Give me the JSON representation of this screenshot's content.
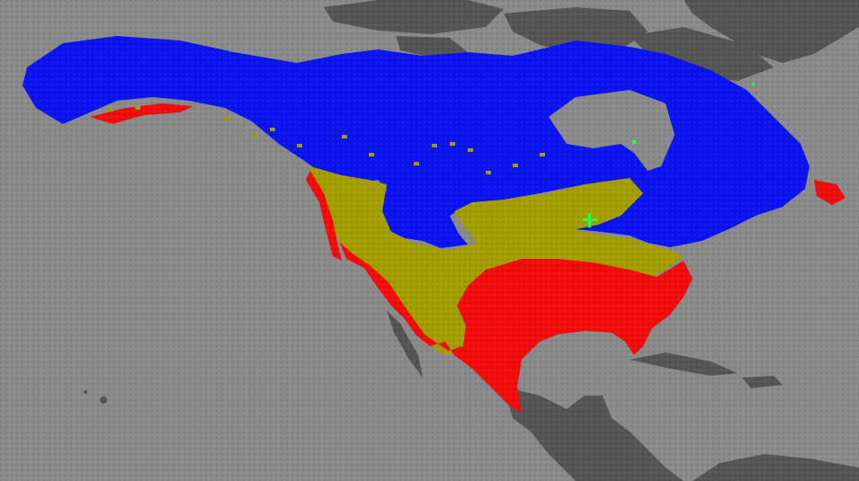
{
  "map": {
    "colors": {
      "ocean": "#8a8a8a",
      "land": "#555555",
      "class_blue": "#0b14f0",
      "class_olive": "#a39e00",
      "class_red": "#f20c0c",
      "marker_green": "#2bff44"
    },
    "legend": [],
    "labels": []
  }
}
